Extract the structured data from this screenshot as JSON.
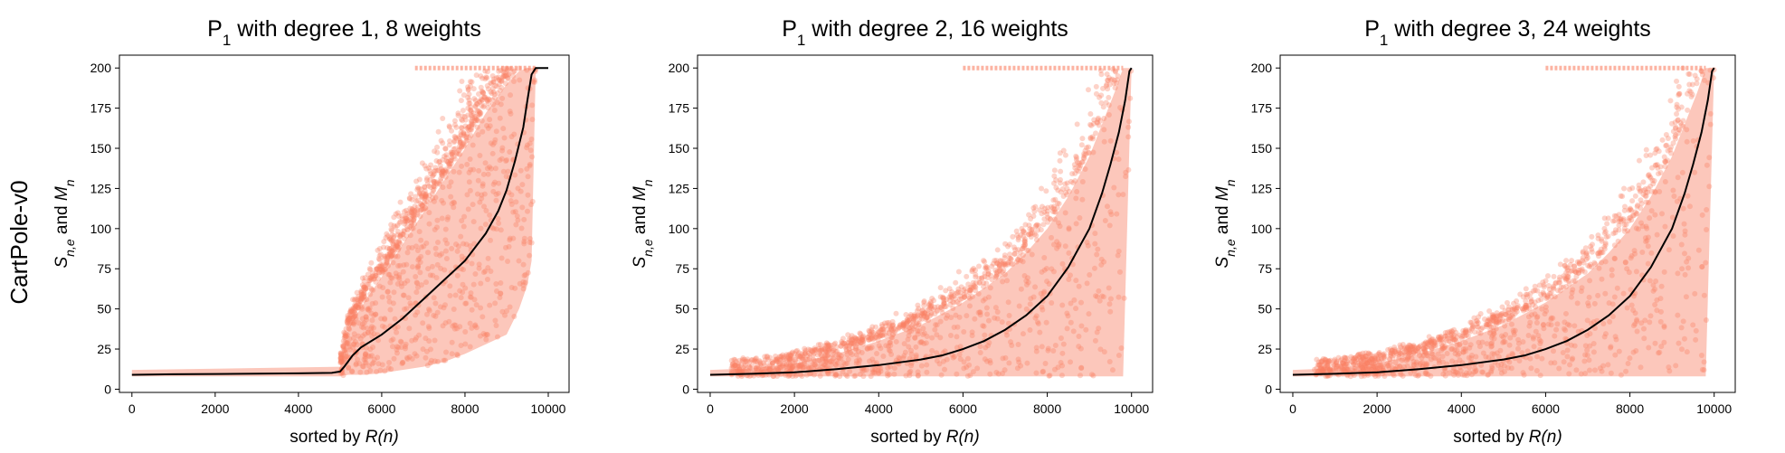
{
  "figure": {
    "row_label": "CartPole-v0"
  },
  "colors": {
    "scatter": "#fa8064",
    "band": "#fbb4a4",
    "mean_line": "#000000"
  },
  "chart_data": [
    {
      "type": "scatter",
      "title": {
        "base": "P",
        "sub": "1",
        "rest": " with degree 1, 8 weights"
      },
      "xlabel": {
        "prefix": "sorted by ",
        "italic": "R(n)"
      },
      "ylabel": {
        "s": "S",
        "s_sub": "n,e",
        "mid": " and ",
        "m": "M",
        "m_sub": "n"
      },
      "xlim": [
        -300,
        10500
      ],
      "ylim": [
        -2,
        208
      ],
      "xticks": [
        0,
        2000,
        4000,
        6000,
        8000,
        10000
      ],
      "yticks": [
        0,
        25,
        50,
        75,
        100,
        125,
        150,
        175,
        200
      ],
      "series": [
        {
          "kind": "mean",
          "x": [
            0,
            1000,
            2000,
            3000,
            4000,
            4800,
            5000,
            5100,
            5300,
            5500,
            6000,
            6500,
            7000,
            7500,
            8000,
            8500,
            8800,
            9000,
            9200,
            9400,
            9500,
            9600,
            9700,
            9800,
            10000
          ],
          "y": [
            9,
            9.3,
            9.5,
            9.7,
            9.9,
            10.2,
            11,
            14,
            21,
            26,
            34,
            44,
            56,
            68,
            80,
            97,
            111,
            124,
            142,
            163,
            180,
            196,
            200,
            200,
            200
          ]
        },
        {
          "kind": "band",
          "x": [
            0,
            5000,
            5200,
            5600,
            6000,
            6500,
            7000,
            7500,
            8000,
            8500,
            9000,
            9300,
            9500,
            9600,
            9700,
            10000
          ],
          "upper": [
            12,
            14,
            38,
            55,
            70,
            90,
            110,
            130,
            150,
            172,
            190,
            198,
            200,
            200,
            200,
            200
          ],
          "lower": [
            8,
            8,
            9,
            9,
            10,
            12,
            14,
            17,
            22,
            28,
            34,
            50,
            65,
            80,
            200,
            200
          ]
        },
        {
          "kind": "scatter",
          "x_range": [
            5000,
            9700
          ],
          "y_range": [
            9,
            200
          ],
          "outliers_top_x": [
            6800,
            9700
          ]
        }
      ]
    },
    {
      "type": "scatter",
      "title": {
        "base": "P",
        "sub": "1",
        "rest": " with degree 2, 16 weights"
      },
      "xlabel": {
        "prefix": "sorted by ",
        "italic": "R(n)"
      },
      "ylabel": {
        "s": "S",
        "s_sub": "n,e",
        "mid": " and ",
        "m": "M",
        "m_sub": "n"
      },
      "xlim": [
        -300,
        10500
      ],
      "ylim": [
        -2,
        208
      ],
      "xticks": [
        0,
        2000,
        4000,
        6000,
        8000,
        10000
      ],
      "yticks": [
        0,
        25,
        50,
        75,
        100,
        125,
        150,
        175,
        200
      ],
      "series": [
        {
          "kind": "mean",
          "x": [
            0,
            1000,
            2000,
            3000,
            4000,
            5000,
            5500,
            6000,
            6500,
            7000,
            7500,
            8000,
            8500,
            9000,
            9300,
            9500,
            9700,
            9850,
            9950,
            10000
          ],
          "y": [
            9,
            9.6,
            10.5,
            12.5,
            15,
            18.5,
            21,
            25,
            30,
            37,
            46,
            58,
            76,
            100,
            122,
            140,
            160,
            180,
            198,
            200
          ]
        },
        {
          "kind": "band",
          "x": [
            0,
            1000,
            2000,
            3000,
            4000,
            5000,
            6000,
            7000,
            7500,
            8000,
            8500,
            9000,
            9300,
            9600,
            9800,
            10000
          ],
          "upper": [
            12,
            13,
            16,
            22,
            30,
            40,
            54,
            72,
            85,
            100,
            120,
            145,
            165,
            185,
            200,
            200
          ],
          "lower": [
            8,
            8,
            8,
            8,
            8,
            8,
            8,
            8,
            8,
            8,
            8,
            8,
            8,
            8,
            8,
            200
          ]
        },
        {
          "kind": "scatter",
          "x_range": [
            500,
            10000
          ],
          "y_range": [
            9,
            200
          ],
          "outliers_top_x": [
            6000,
            9800
          ]
        }
      ]
    },
    {
      "type": "scatter",
      "title": {
        "base": "P",
        "sub": "1",
        "rest": " with degree 3, 24 weights"
      },
      "xlabel": {
        "prefix": "sorted by ",
        "italic": "R(n)"
      },
      "ylabel": {
        "s": "S",
        "s_sub": "n,e",
        "mid": " and ",
        "m": "M",
        "m_sub": "n"
      },
      "xlim": [
        -300,
        10500
      ],
      "ylim": [
        -2,
        208
      ],
      "xticks": [
        0,
        2000,
        4000,
        6000,
        8000,
        10000
      ],
      "yticks": [
        0,
        25,
        50,
        75,
        100,
        125,
        150,
        175,
        200
      ],
      "series": [
        {
          "kind": "mean",
          "x": [
            0,
            1000,
            2000,
            3000,
            4000,
            5000,
            5500,
            6000,
            6500,
            7000,
            7500,
            8000,
            8500,
            9000,
            9300,
            9500,
            9700,
            9850,
            9950,
            10000
          ],
          "y": [
            9,
            9.6,
            10.5,
            12.5,
            15,
            18.5,
            21,
            25,
            30,
            37,
            46,
            58,
            76,
            100,
            122,
            140,
            160,
            180,
            198,
            200
          ]
        },
        {
          "kind": "band",
          "x": [
            0,
            1000,
            2000,
            3000,
            4000,
            5000,
            6000,
            7000,
            7500,
            8000,
            8500,
            9000,
            9300,
            9600,
            9800,
            10000
          ],
          "upper": [
            12,
            13,
            16,
            22,
            30,
            40,
            54,
            72,
            85,
            100,
            120,
            145,
            165,
            185,
            200,
            200
          ],
          "lower": [
            8,
            8,
            8,
            8,
            8,
            8,
            8,
            8,
            8,
            8,
            8,
            8,
            8,
            8,
            8,
            200
          ]
        },
        {
          "kind": "scatter",
          "x_range": [
            500,
            10000
          ],
          "y_range": [
            9,
            200
          ],
          "outliers_top_x": [
            6000,
            9800
          ]
        }
      ]
    }
  ]
}
